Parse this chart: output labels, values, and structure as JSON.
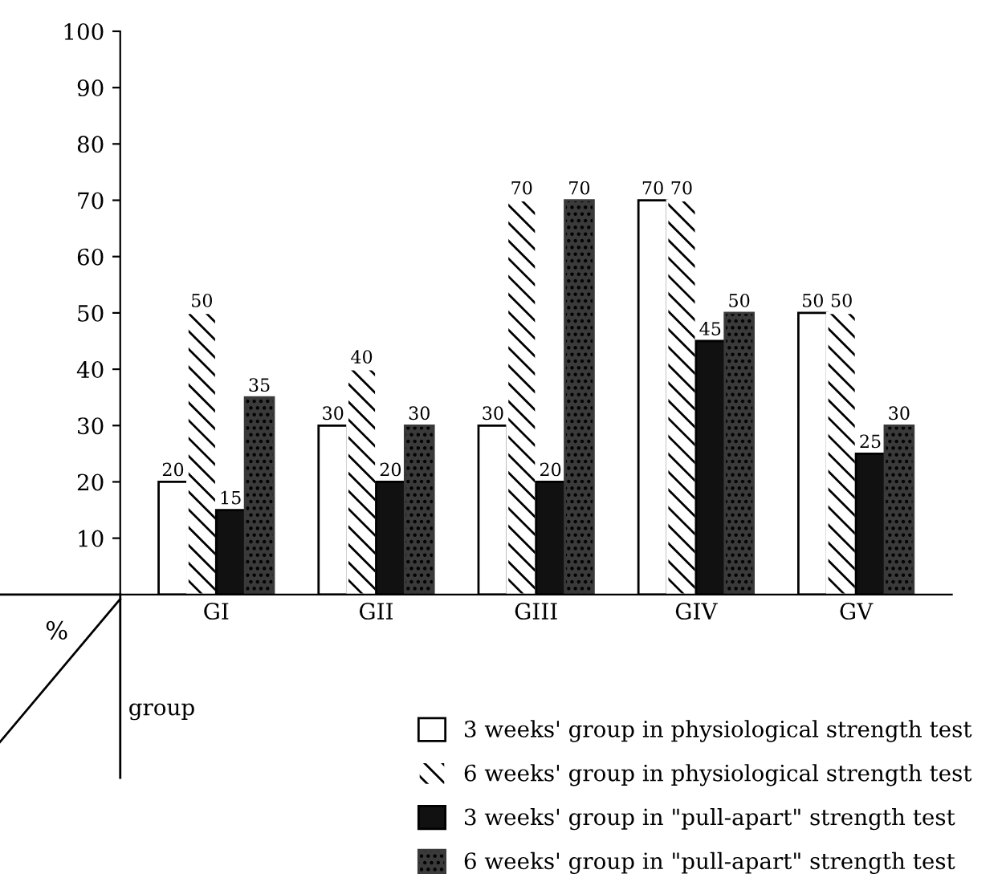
{
  "chart_data": {
    "type": "bar",
    "categories": [
      "GI",
      "GII",
      "GIII",
      "GIV",
      "GV"
    ],
    "series": [
      {
        "name": "3 weeks' group in physiological strength test",
        "color": "#ffffff",
        "values": [
          20,
          30,
          30,
          70,
          50
        ]
      },
      {
        "name": "6 weeks' group in physiological strength test",
        "color": "#ffffff",
        "values": [
          50,
          40,
          70,
          70,
          50
        ]
      },
      {
        "name": "3 weeks' group in \"pull-apart\" strength test",
        "color": "#111111",
        "values": [
          15,
          20,
          20,
          45,
          25
        ]
      },
      {
        "name": "6 weeks' group in \"pull-apart\" strength test",
        "color": "#3a3a3a",
        "values": [
          35,
          30,
          70,
          50,
          30
        ]
      }
    ],
    "xlabel": "group",
    "ylabel": "%",
    "ylim": [
      0,
      100
    ],
    "yticks": [
      10,
      20,
      30,
      40,
      50,
      60,
      70,
      80,
      90,
      100
    ],
    "data_labels": true,
    "legend": "bottom",
    "grid": false
  }
}
